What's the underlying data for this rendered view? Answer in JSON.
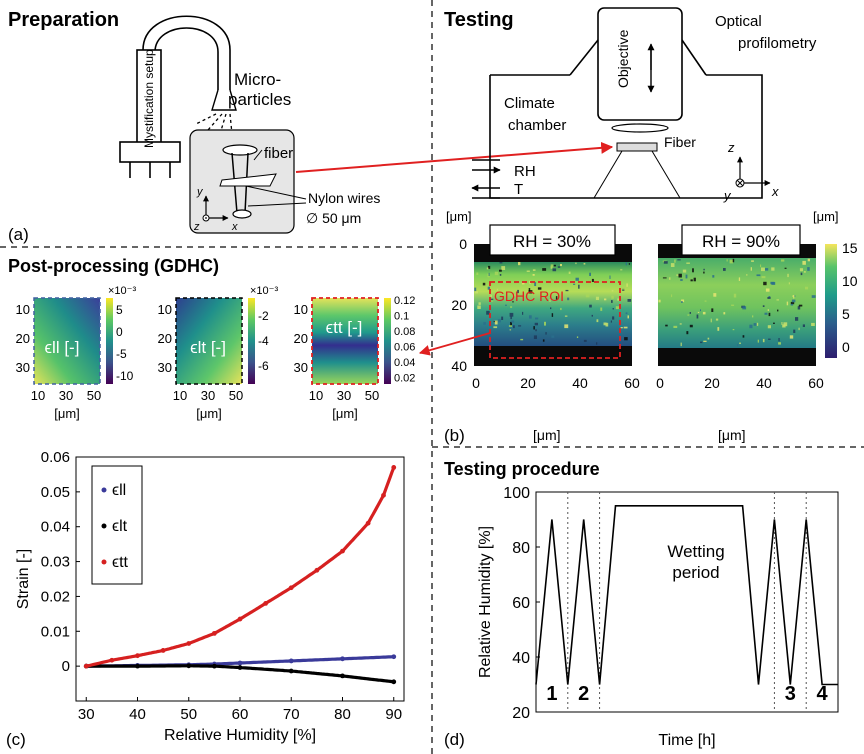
{
  "colors": {
    "red": "#e02020",
    "blue": "#3a3a9a",
    "black": "#000000",
    "box_grey": "#e6e6e6",
    "viridis": [
      "#440154",
      "#3b528b",
      "#21918c",
      "#5ec962",
      "#fde725"
    ],
    "height_scale": [
      "#2d1e6e",
      "#2c5d8c",
      "#1f9b8a",
      "#57c36a",
      "#f4e55c"
    ],
    "coolwarm_strip": [
      "#1e6bc8",
      "#11d0d0",
      "#3b3fb0",
      "#d81f20"
    ]
  },
  "panel_a": {
    "title": "Preparation",
    "label": "(a)",
    "mist_label": "Mystification setup",
    "microparticles_line1": "Micro-",
    "microparticles_line2": "particles",
    "fiber": "fiber",
    "nylon": "Nylon wires",
    "diameter": "∅ 50 μm",
    "axis_y": "y",
    "axis_z": "z",
    "axis_x": "x"
  },
  "testing": {
    "title": "Testing",
    "objective": "Objective",
    "optical_line1": "Optical",
    "optical_line2": "profilometry",
    "climate_line1": "Climate",
    "climate_line2": "chamber",
    "fiber": "Fiber",
    "rh": "RH",
    "t": "T",
    "axis_z": "z",
    "axis_y": "y",
    "axis_x": "x"
  },
  "panel_b": {
    "label": "(b)",
    "unit_y": "[μm]",
    "unit_x": "[μm]",
    "unit_cb": "[μm]",
    "left_title": "RH = 30%",
    "right_title": "RH = 90%",
    "roi": "GDHC ROI",
    "y_ticks": [
      "0",
      "20",
      "40"
    ],
    "x_ticks": [
      "0",
      "20",
      "40",
      "60"
    ],
    "cb_ticks": [
      "15",
      "10",
      "5",
      "0"
    ]
  },
  "post": {
    "title": "Post-processing (GDHC)",
    "map1_label": "ϵll [-]",
    "map2_label": "ϵlt [-]",
    "map3_label": "ϵtt [-]",
    "map1_exp": "×10⁻³",
    "map2_exp": "×10⁻³",
    "y_ticks": [
      "10",
      "20",
      "30"
    ],
    "x_ticks": [
      "10",
      "30",
      "50"
    ],
    "x_unit": "[μm]",
    "cb1_ticks": [
      "5",
      "0",
      "-5",
      "-10"
    ],
    "cb2_ticks": [
      "-2",
      "-4",
      "-6"
    ],
    "cb3_ticks": [
      "0.12",
      "0.1",
      "0.08",
      "0.06",
      "0.04",
      "0.02"
    ]
  },
  "panel_d": {
    "title": "Testing procedure",
    "label": "(d)",
    "annotation_line1": "Wetting",
    "annotation_line2": "period",
    "cycles": [
      "1",
      "2",
      "3",
      "4"
    ]
  },
  "chart_data": [
    {
      "type": "scatter",
      "panel": "(c)",
      "xlabel": "Relative Humidity [%]",
      "ylabel": "Strain [-]",
      "xlim": [
        28,
        92
      ],
      "ylim": [
        -0.01,
        0.06
      ],
      "x_ticks": [
        30,
        40,
        50,
        60,
        70,
        80,
        90
      ],
      "y_ticks": [
        0,
        0.01,
        0.02,
        0.03,
        0.04,
        0.05,
        0.06
      ],
      "legend_position": "top-left",
      "series": [
        {
          "name": "ϵll",
          "color": "#3a3a9a",
          "x": [
            30,
            40,
            50,
            55,
            60,
            70,
            80,
            90
          ],
          "y": [
            0.0,
            0.0002,
            0.0004,
            0.0006,
            0.0009,
            0.0015,
            0.0021,
            0.0027
          ]
        },
        {
          "name": "ϵlt",
          "color": "#000000",
          "x": [
            30,
            40,
            50,
            55,
            60,
            70,
            80,
            90
          ],
          "y": [
            0.0,
            0.0,
            0.0001,
            0.0,
            -0.0004,
            -0.0014,
            -0.0028,
            -0.0045
          ]
        },
        {
          "name": "ϵtt",
          "color": "#d62020",
          "x": [
            30,
            35,
            40,
            45,
            50,
            55,
            60,
            65,
            70,
            75,
            80,
            85,
            88,
            90
          ],
          "y": [
            0.0,
            0.0017,
            0.003,
            0.0045,
            0.0065,
            0.0094,
            0.0135,
            0.018,
            0.0225,
            0.0275,
            0.033,
            0.041,
            0.049,
            0.057
          ]
        }
      ]
    },
    {
      "type": "line",
      "panel": "(d)",
      "xlabel": "Time [h]",
      "ylabel": "Relative Humidity [%]",
      "ylim": [
        20,
        100
      ],
      "y_ticks": [
        20,
        40,
        60,
        80,
        100
      ],
      "x": [
        0,
        1,
        2,
        3,
        4,
        5,
        6,
        7,
        13,
        14,
        15,
        16,
        17,
        18,
        19
      ],
      "y": [
        30,
        90,
        30,
        90,
        30,
        95,
        95,
        95,
        95,
        30,
        90,
        30,
        90,
        30,
        30
      ]
    }
  ]
}
